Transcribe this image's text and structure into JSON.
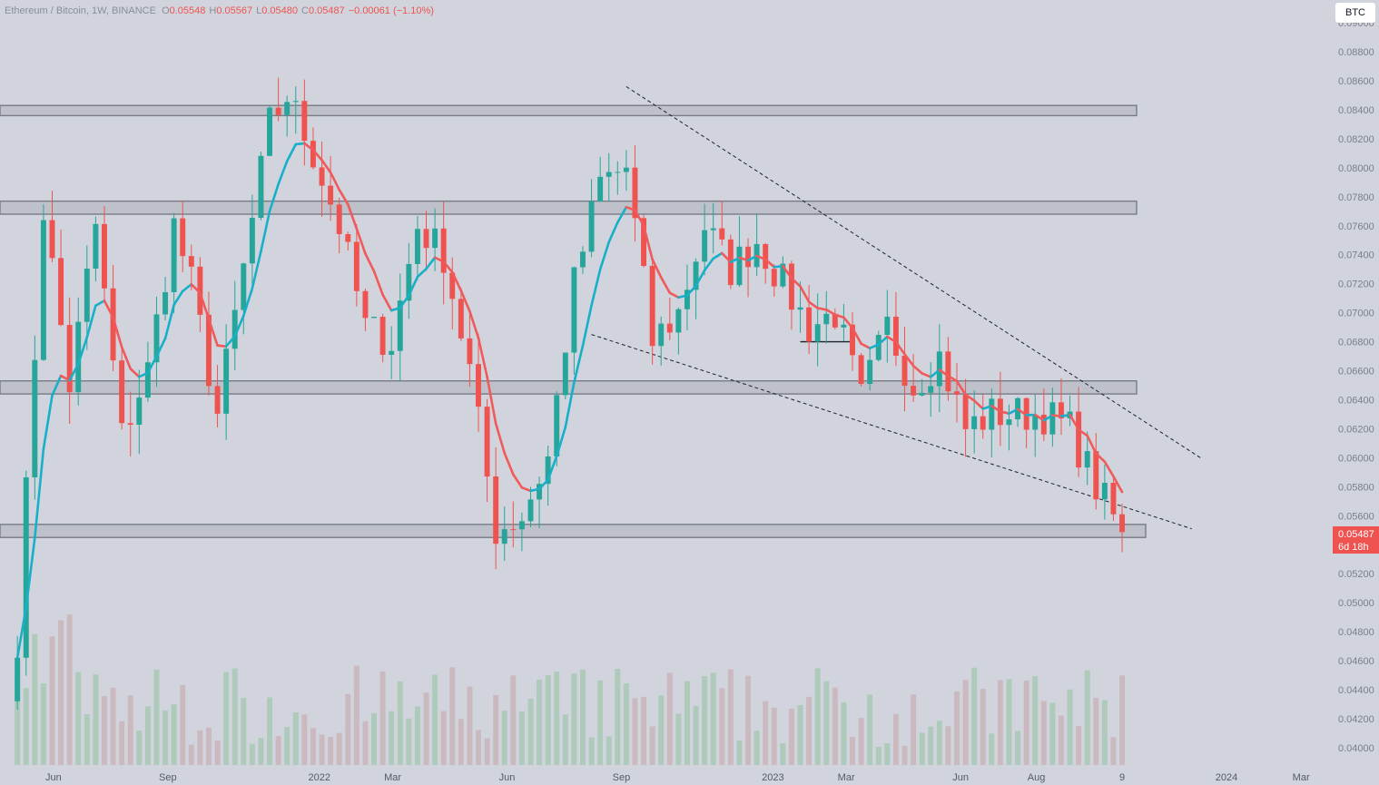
{
  "header": {
    "symbol": "Ethereum / Bitcoin",
    "interval": "1W",
    "exchange": "BINANCE",
    "o_label": "O",
    "o_value": "0.05548",
    "h_label": "H",
    "h_value": "0.05567",
    "l_label": "L",
    "l_value": "0.05480",
    "c_label": "C",
    "c_value": "0.05487",
    "change": "−0.00061 (−1.10%)"
  },
  "currency_button": "BTC",
  "price_tag": {
    "price": "0.05487",
    "countdown": "6d 18h"
  },
  "colors": {
    "up": "#26a69a",
    "down": "#ef5350",
    "background": "#d1d4dc",
    "zone_fill": "#b8bbc4",
    "zone_stroke": "#787b86",
    "trail_up": "#17b0c8",
    "trail_down": "#f05a5a"
  },
  "chart_data": {
    "type": "candlestick",
    "y_ticks": [
      "0.09000",
      "0.08800",
      "0.08600",
      "0.08400",
      "0.08200",
      "0.08000",
      "0.07800",
      "0.07600",
      "0.07400",
      "0.07200",
      "0.07000",
      "0.06800",
      "0.06600",
      "0.06400",
      "0.06200",
      "0.06000",
      "0.05800",
      "0.05600",
      "0.05200",
      "0.05000",
      "0.04800",
      "0.04600",
      "0.04400",
      "0.04200",
      "0.04000"
    ],
    "x_ticks": [
      "Jun",
      "Sep",
      "2022",
      "Mar",
      "Jun",
      "Sep",
      "2023",
      "Mar",
      "Jun",
      "Aug",
      "9",
      "2024",
      "Mar"
    ],
    "x_tick_dates": [
      "2021-06-01",
      "2021-09-01",
      "2022-01-01",
      "2022-03-01",
      "2022-06-01",
      "2022-09-01",
      "2023-01-01",
      "2023-03-01",
      "2023-06-01",
      "2023-08-01",
      "2023-10-09",
      "2024-01-01",
      "2024-03-01"
    ],
    "ylim": [
      0.0388,
      0.0912
    ],
    "xlim": [
      "2021-04-19",
      "2024-03-25"
    ],
    "close_series": [
      {
        "date": "2021-05-03",
        "close": 0.0476
      },
      {
        "date": "2021-05-24",
        "close": 0.0772
      },
      {
        "date": "2021-06-14",
        "close": 0.065
      },
      {
        "date": "2021-07-05",
        "close": 0.076
      },
      {
        "date": "2021-07-26",
        "close": 0.0615
      },
      {
        "date": "2021-08-16",
        "close": 0.066
      },
      {
        "date": "2021-09-06",
        "close": 0.076
      },
      {
        "date": "2021-09-20",
        "close": 0.072
      },
      {
        "date": "2021-10-11",
        "close": 0.063
      },
      {
        "date": "2021-11-01",
        "close": 0.073
      },
      {
        "date": "2021-11-22",
        "close": 0.083
      },
      {
        "date": "2021-12-06",
        "close": 0.085
      },
      {
        "date": "2021-12-27",
        "close": 0.081
      },
      {
        "date": "2022-01-17",
        "close": 0.076
      },
      {
        "date": "2022-02-07",
        "close": 0.069
      },
      {
        "date": "2022-02-28",
        "close": 0.068
      },
      {
        "date": "2022-03-21",
        "close": 0.076
      },
      {
        "date": "2022-04-11",
        "close": 0.074
      },
      {
        "date": "2022-05-02",
        "close": 0.066
      },
      {
        "date": "2022-05-23",
        "close": 0.055
      },
      {
        "date": "2022-06-13",
        "close": 0.056
      },
      {
        "date": "2022-07-04",
        "close": 0.06
      },
      {
        "date": "2022-07-25",
        "close": 0.072
      },
      {
        "date": "2022-08-15",
        "close": 0.079
      },
      {
        "date": "2022-09-05",
        "close": 0.08
      },
      {
        "date": "2022-09-26",
        "close": 0.068
      },
      {
        "date": "2022-10-17",
        "close": 0.07
      },
      {
        "date": "2022-11-07",
        "close": 0.076
      },
      {
        "date": "2022-11-28",
        "close": 0.073
      },
      {
        "date": "2022-12-19",
        "close": 0.075
      },
      {
        "date": "2023-01-09",
        "close": 0.072
      },
      {
        "date": "2023-01-30",
        "close": 0.069
      },
      {
        "date": "2023-02-20",
        "close": 0.07
      },
      {
        "date": "2023-03-13",
        "close": 0.064
      },
      {
        "date": "2023-04-03",
        "close": 0.069
      },
      {
        "date": "2023-04-24",
        "close": 0.065
      },
      {
        "date": "2023-05-15",
        "close": 0.067
      },
      {
        "date": "2023-06-05",
        "close": 0.062
      },
      {
        "date": "2023-06-26",
        "close": 0.063
      },
      {
        "date": "2023-07-17",
        "close": 0.063
      },
      {
        "date": "2023-08-07",
        "close": 0.063
      },
      {
        "date": "2023-08-28",
        "close": 0.062
      },
      {
        "date": "2023-09-18",
        "close": 0.058
      },
      {
        "date": "2023-10-09",
        "close": 0.05487
      }
    ],
    "zones": [
      {
        "from": 0.0843,
        "to": 0.0836
      },
      {
        "from": 0.0777,
        "to": 0.0768
      },
      {
        "from": 0.0653,
        "to": 0.0644
      },
      {
        "from": 0.0554,
        "to": 0.0545
      }
    ],
    "trendlines": [
      {
        "from": {
          "date": "2022-09-05",
          "price": 0.0856
        },
        "to": {
          "date": "2023-12-11",
          "price": 0.06
        }
      },
      {
        "from": {
          "date": "2022-08-08",
          "price": 0.0685
        },
        "to": {
          "date": "2023-12-04",
          "price": 0.0551
        }
      }
    ],
    "support_line": {
      "from_date": "2023-01-23",
      "to_date": "2023-03-06",
      "price": 0.068
    }
  }
}
